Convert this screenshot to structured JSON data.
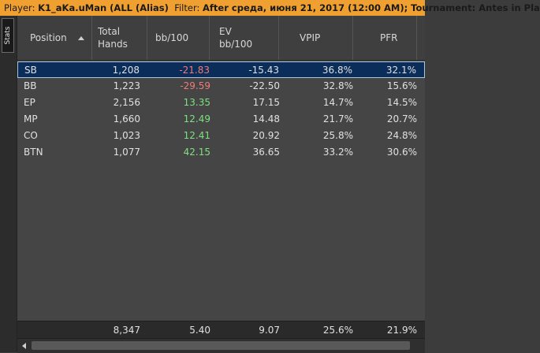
{
  "filterbar": {
    "player_label": "Player:",
    "player_value": "K1_aKa.uMan (ALL (Alias)",
    "filter_label": "Filter:",
    "filter_value": "After среда, июня 21, 2017 (12:00 AM); Tournament: Antes in Pla"
  },
  "sidetab": {
    "label": "Stats"
  },
  "table": {
    "columns": [
      "Position",
      "Total Hands",
      "bb/100",
      "EV bb/100",
      "VPIP",
      "PFR"
    ],
    "sort_column": "Position",
    "sort_direction": "ascending",
    "rows": [
      {
        "position": "SB",
        "hands": "1,208",
        "bb100": "-21.83",
        "ev": "-15.43",
        "vpip": "36.8%",
        "pfr": "32.1%",
        "selected": true
      },
      {
        "position": "BB",
        "hands": "1,223",
        "bb100": "-29.59",
        "ev": "-22.50",
        "vpip": "32.8%",
        "pfr": "15.6%"
      },
      {
        "position": "EP",
        "hands": "2,156",
        "bb100": "13.35",
        "ev": "17.15",
        "vpip": "14.7%",
        "pfr": "14.5%"
      },
      {
        "position": "MP",
        "hands": "1,660",
        "bb100": "12.49",
        "ev": "14.48",
        "vpip": "21.7%",
        "pfr": "20.7%"
      },
      {
        "position": "CO",
        "hands": "1,023",
        "bb100": "12.41",
        "ev": "20.92",
        "vpip": "25.8%",
        "pfr": "24.8%"
      },
      {
        "position": "BTN",
        "hands": "1,077",
        "bb100": "42.15",
        "ev": "36.65",
        "vpip": "33.2%",
        "pfr": "30.6%"
      }
    ],
    "totals": {
      "hands": "8,347",
      "bb100": "5.40",
      "ev": "9.07",
      "vpip": "25.6%",
      "pfr": "21.9%"
    }
  },
  "colors": {
    "filterbar_bg": "#f0a030",
    "negative": "#f07a7a",
    "positive": "#7ee07e",
    "selected_row": "#0a2d5a"
  }
}
